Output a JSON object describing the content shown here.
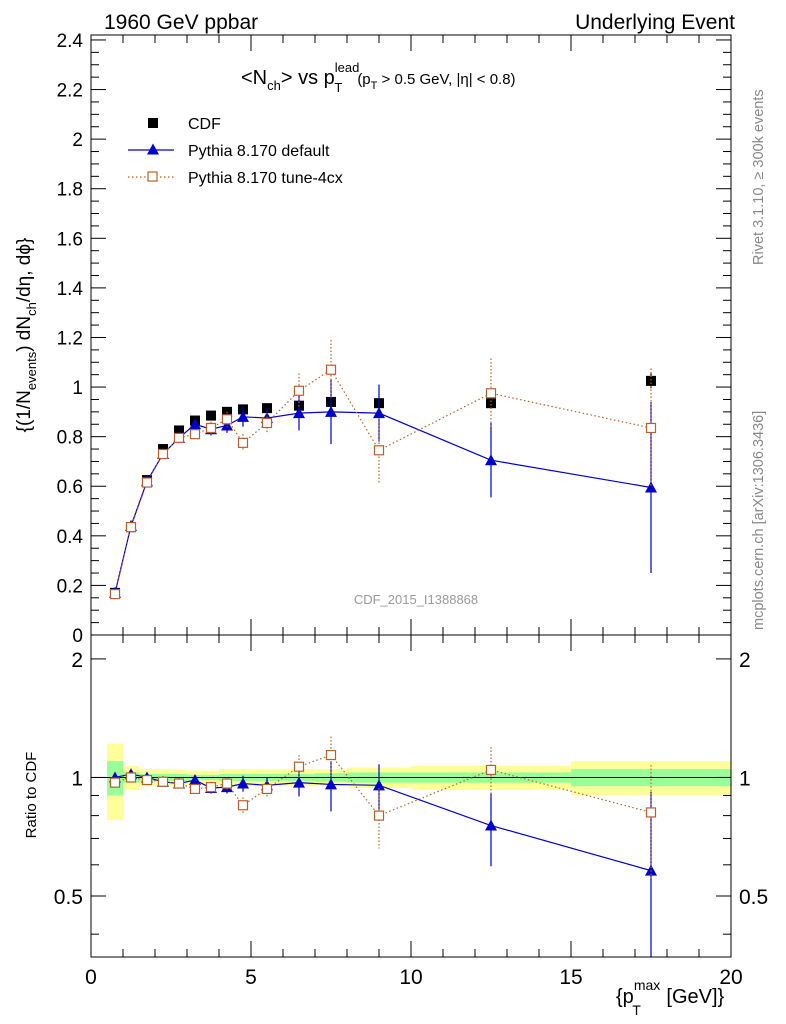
{
  "header": {
    "left": "1960 GeV ppbar",
    "right": "Underlying Event"
  },
  "side": {
    "rivet": "Rivet 3.1.10, ≥ 300k events",
    "mcplots": "mcplots.cern.ch [arXiv:1306.3436]"
  },
  "watermark": "CDF_2015_I1388868",
  "colors": {
    "data": "#000000",
    "default": "#0000cc",
    "tune": "#b8602a",
    "band_outer": "#ffff99",
    "band_inner": "#99ff99",
    "side_text": "#888888",
    "watermark": "#999999"
  },
  "chart_data": [
    {
      "type": "scatter",
      "panel": "main",
      "title_parts": {
        "pre": "<N",
        "pre_sub": "ch",
        "mid": "> vs p",
        "mid_sup": "lead",
        "mid_sub": "T",
        "cut": "(p",
        "cut_sub": "T",
        "cut_rest": " > 0.5 GeV, |η| < 0.8)"
      },
      "ylabel_parts": {
        "a": "{(1/N",
        "a_sub": "events",
        "b": ") dN",
        "b_sub": "ch",
        "c": "/dη, dϕ}"
      },
      "xlim": [
        0,
        20
      ],
      "ylim": [
        0,
        2.42
      ],
      "yticks": [
        0,
        0.2,
        0.4,
        0.6,
        0.8,
        1,
        1.2,
        1.4,
        1.6,
        1.8,
        2,
        2.2,
        2.4
      ],
      "ytick_labels": [
        "0",
        "0.2",
        "0.4",
        "0.6",
        "0.8",
        "1",
        "1.2",
        "1.4",
        "1.6",
        "1.8",
        "2",
        "2.2",
        "2.4"
      ],
      "legend_position": "top-left",
      "series": [
        {
          "name": "CDF",
          "style": "data",
          "x": [
            0.75,
            1.25,
            1.75,
            2.25,
            2.75,
            3.25,
            3.75,
            4.25,
            4.75,
            5.5,
            6.5,
            7.5,
            9.0,
            12.5,
            17.5
          ],
          "y": [
            0.17,
            0.435,
            0.625,
            0.75,
            0.825,
            0.865,
            0.885,
            0.9,
            0.91,
            0.915,
            0.925,
            0.94,
            0.935,
            0.935,
            1.025
          ],
          "yerr": [
            0.005,
            0.01,
            0.01,
            0.01,
            0.01,
            0.01,
            0.01,
            0.01,
            0.01,
            0.01,
            0.012,
            0.015,
            0.015,
            0.02,
            0.03
          ]
        },
        {
          "name": "Pythia 8.170 default",
          "style": "default",
          "x": [
            0.75,
            1.25,
            1.75,
            2.25,
            2.75,
            3.25,
            3.75,
            4.25,
            4.75,
            5.5,
            6.5,
            7.5,
            9.0,
            12.5,
            17.5
          ],
          "y": [
            0.17,
            0.44,
            0.62,
            0.73,
            0.795,
            0.85,
            0.83,
            0.845,
            0.88,
            0.875,
            0.895,
            0.9,
            0.895,
            0.705,
            0.595
          ],
          "yerr": [
            0.005,
            0.01,
            0.01,
            0.01,
            0.015,
            0.02,
            0.025,
            0.03,
            0.04,
            0.04,
            0.07,
            0.13,
            0.115,
            0.15,
            0.345
          ]
        },
        {
          "name": "Pythia 8.170 tune-4cx",
          "style": "tune",
          "x": [
            0.75,
            1.25,
            1.75,
            2.25,
            2.75,
            3.25,
            3.75,
            4.25,
            4.75,
            5.5,
            6.5,
            7.5,
            9.0,
            12.5,
            17.5
          ],
          "y": [
            0.165,
            0.435,
            0.615,
            0.73,
            0.795,
            0.81,
            0.835,
            0.87,
            0.775,
            0.855,
            0.985,
            1.07,
            0.745,
            0.975,
            0.835
          ],
          "yerr": [
            0.005,
            0.01,
            0.01,
            0.01,
            0.015,
            0.02,
            0.025,
            0.03,
            0.035,
            0.04,
            0.07,
            0.12,
            0.13,
            0.14,
            0.24
          ]
        }
      ]
    },
    {
      "type": "scatter",
      "panel": "ratio",
      "ylabel": "Ratio to CDF",
      "xlabel_parts": {
        "a": "{p",
        "a_sup": "max",
        "a_sub": "T",
        "b": " [GeV]}"
      },
      "xlim": [
        0,
        20
      ],
      "ylim": [
        0.35,
        2.3
      ],
      "log_y": true,
      "xticks": [
        0,
        5,
        10,
        15,
        20
      ],
      "xtick_labels": [
        "0",
        "5",
        "10",
        "15",
        "20"
      ],
      "yticks": [
        0.5,
        1,
        2
      ],
      "ytick_labels": [
        "0.5",
        "1",
        "2"
      ],
      "bands": {
        "edges": [
          0.5,
          1.0,
          1.5,
          2.0,
          2.5,
          3.0,
          3.5,
          4.0,
          4.5,
          5.0,
          6.0,
          7.0,
          8.0,
          10.0,
          15.0,
          20.0
        ],
        "inner_lo": [
          0.9,
          0.97,
          0.98,
          0.98,
          0.98,
          0.985,
          0.985,
          0.98,
          0.98,
          0.98,
          0.98,
          0.975,
          0.97,
          0.97,
          0.95
        ],
        "inner_hi": [
          1.1,
          1.03,
          1.02,
          1.02,
          1.02,
          1.015,
          1.015,
          1.02,
          1.02,
          1.02,
          1.02,
          1.025,
          1.03,
          1.03,
          1.05
        ],
        "outer_lo": [
          0.78,
          0.93,
          0.95,
          0.95,
          0.955,
          0.96,
          0.96,
          0.95,
          0.95,
          0.95,
          0.95,
          0.95,
          0.94,
          0.93,
          0.9
        ],
        "outer_hi": [
          1.22,
          1.07,
          1.05,
          1.05,
          1.045,
          1.04,
          1.04,
          1.05,
          1.05,
          1.05,
          1.05,
          1.05,
          1.06,
          1.07,
          1.1
        ]
      },
      "series": [
        {
          "name": "Pythia 8.170 default",
          "style": "default",
          "x": [
            0.75,
            1.25,
            1.75,
            2.25,
            2.75,
            3.25,
            3.75,
            4.25,
            4.75,
            5.5,
            6.5,
            7.5,
            9.0,
            12.5,
            17.5
          ],
          "y": [
            1.0,
            1.02,
            1.0,
            0.975,
            0.965,
            0.985,
            0.94,
            0.945,
            0.965,
            0.955,
            0.97,
            0.96,
            0.955,
            0.755,
            0.58
          ],
          "yerr": [
            0.02,
            0.02,
            0.02,
            0.015,
            0.02,
            0.02,
            0.03,
            0.035,
            0.045,
            0.045,
            0.075,
            0.14,
            0.125,
            0.16,
            0.34
          ]
        },
        {
          "name": "Pythia 8.170 tune-4cx",
          "style": "tune",
          "x": [
            0.75,
            1.25,
            1.75,
            2.25,
            2.75,
            3.25,
            3.75,
            4.25,
            4.75,
            5.5,
            6.5,
            7.5,
            9.0,
            12.5,
            17.5
          ],
          "y": [
            0.97,
            1.0,
            0.985,
            0.975,
            0.965,
            0.935,
            0.945,
            0.965,
            0.85,
            0.935,
            1.065,
            1.14,
            0.8,
            1.045,
            0.815
          ],
          "yerr": [
            0.02,
            0.02,
            0.02,
            0.015,
            0.02,
            0.025,
            0.03,
            0.035,
            0.04,
            0.045,
            0.075,
            0.13,
            0.14,
            0.15,
            0.26
          ]
        }
      ]
    }
  ]
}
